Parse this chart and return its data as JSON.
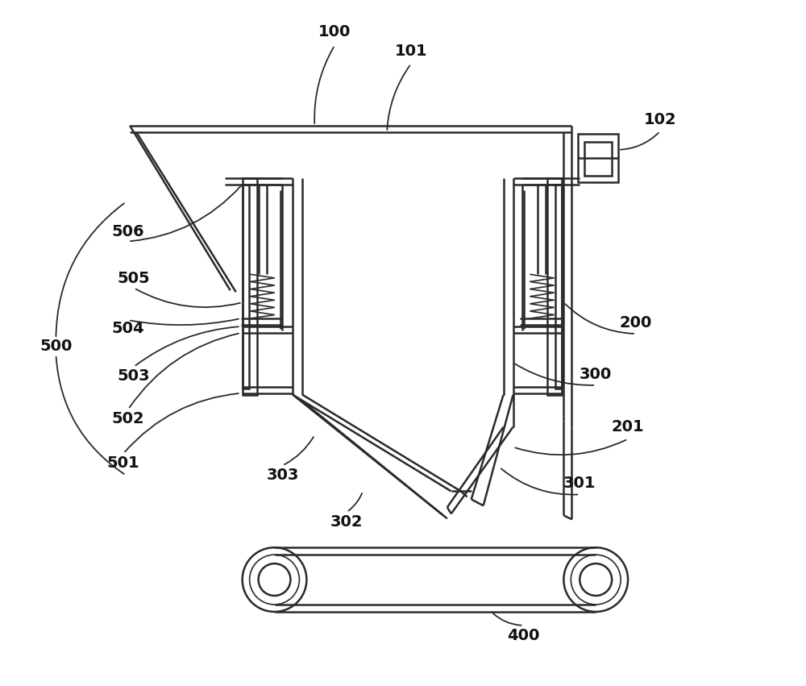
{
  "bg_color": "#ffffff",
  "line_color": "#2a2a2a",
  "lw_main": 1.8,
  "lw_thin": 1.2,
  "figsize": [
    10.0,
    8.51
  ],
  "dpi": 100
}
